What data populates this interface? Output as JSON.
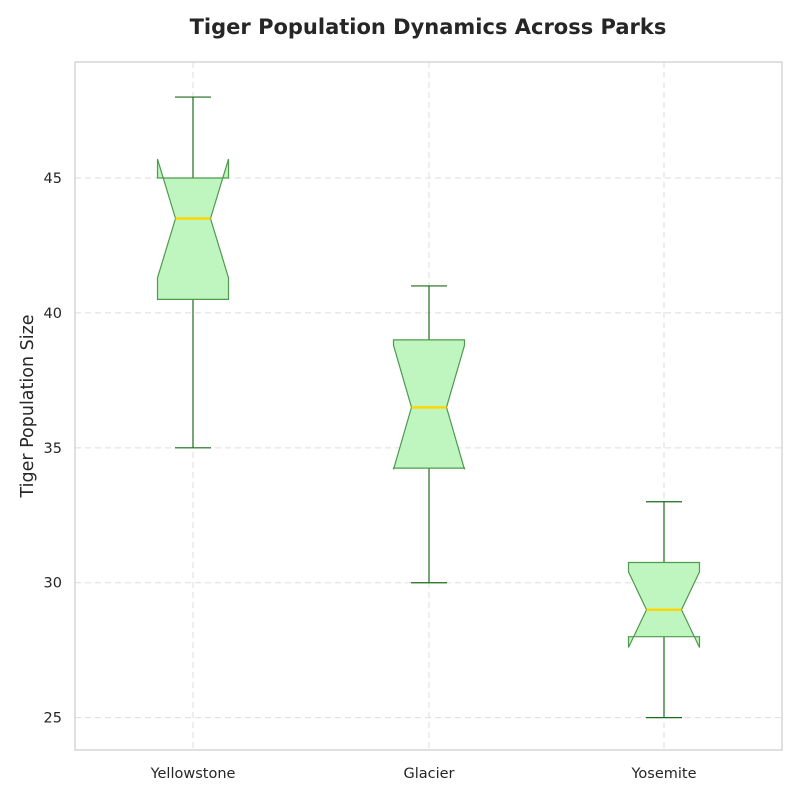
{
  "chart_data": {
    "type": "boxplot",
    "title": "Tiger Population Dynamics Across Parks",
    "xlabel": "",
    "ylabel": "Tiger Population Size",
    "categories": [
      "Yellowstone",
      "Glacier",
      "Yosemite"
    ],
    "boxes": [
      {
        "category": "Yellowstone",
        "whisker_low": 35,
        "q1": 40.5,
        "median": 43.5,
        "q3": 45,
        "whisker_high": 48,
        "notch_low": 41.3,
        "notch_high": 45.7
      },
      {
        "category": "Glacier",
        "whisker_low": 30,
        "q1": 34.25,
        "median": 36.5,
        "q3": 39,
        "whisker_high": 41,
        "notch_low": 34.2,
        "notch_high": 38.8
      },
      {
        "category": "Yosemite",
        "whisker_low": 25,
        "q1": 28,
        "median": 29,
        "q3": 30.75,
        "whisker_high": 33,
        "notch_low": 27.6,
        "notch_high": 30.4
      }
    ],
    "yticks": [
      25,
      30,
      35,
      40,
      45
    ],
    "ylim": [
      23.8,
      49.3
    ],
    "notched": true,
    "grid": true,
    "colors": {
      "box_fill": "#bff5bf",
      "box_edge": "#4e9a4e",
      "whisker": "#1a6b1a",
      "median": "#ffd700",
      "grid": "#dddddd",
      "frame": "#cccccc"
    }
  }
}
